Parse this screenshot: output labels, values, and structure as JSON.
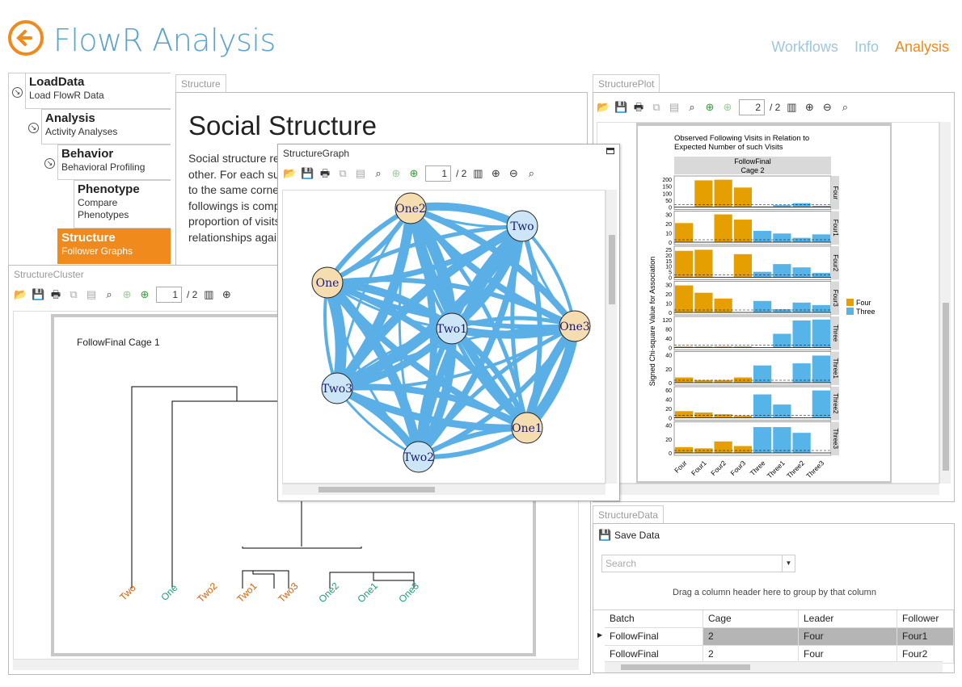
{
  "app": {
    "title": "FlowR Analysis"
  },
  "topnav": [
    {
      "label": "Workflows",
      "active": false
    },
    {
      "label": "Info",
      "active": false
    },
    {
      "label": "Analysis",
      "active": true
    }
  ],
  "colors": {
    "accent": "#f08a1c",
    "title_blue": "#5ba3c9",
    "nav_inactive": "#9ec7dc",
    "edge": "#5ab0e6",
    "node_four": "#f6ddb0",
    "node_three": "#cde6f7",
    "bar_four": "#e69f00",
    "bar_three": "#56b4e9",
    "sel": "#f08a1c"
  },
  "workflow": [
    {
      "title": "LoadData",
      "subtitle": "Load FlowR Data"
    },
    {
      "title": "Analysis",
      "subtitle": "Activity Analyses"
    },
    {
      "title": "Behavior",
      "subtitle": "Behavioral Profiling"
    },
    {
      "title": "Phenotype",
      "subtitle": "Compare Phenotypes"
    },
    {
      "title": "Structure",
      "subtitle": "Follower Graphs"
    }
  ],
  "structure_doc": {
    "tab": "Structure",
    "heading": "Social Structure",
    "lines": [
      "Social structure re",
      "other. For each su",
      "to the same corne",
      "followings is comp",
      "proportion of visits",
      "relationships agai"
    ]
  },
  "toolbar": {
    "page": "1",
    "of": "/ 2"
  },
  "cluster": {
    "tab": "StructureCluster",
    "title": "FollowFinal Cage 1",
    "leaves": [
      {
        "label": "Two",
        "group": "four"
      },
      {
        "label": "One",
        "group": "three"
      },
      {
        "label": "Two2",
        "group": "four"
      },
      {
        "label": "Two1",
        "group": "four"
      },
      {
        "label": "Two3",
        "group": "four"
      },
      {
        "label": "One2",
        "group": "three"
      },
      {
        "label": "One1",
        "group": "three"
      },
      {
        "label": "One3",
        "group": "three"
      }
    ]
  },
  "graph": {
    "title": "StructureGraph",
    "nodes": [
      {
        "label": "One2",
        "type": "four"
      },
      {
        "label": "Two",
        "type": "three"
      },
      {
        "label": "One",
        "type": "four"
      },
      {
        "label": "Two1",
        "type": "three"
      },
      {
        "label": "One3",
        "type": "four"
      },
      {
        "label": "Two3",
        "type": "three"
      },
      {
        "label": "One1",
        "type": "four"
      },
      {
        "label": "Two2",
        "type": "three"
      }
    ]
  },
  "plot": {
    "tab": "StructurePlot",
    "page": "2",
    "of": "/ 2"
  },
  "chart_data": {
    "type": "bar",
    "title": "Observed Following Visits in Relation to Expected Number of such Visits",
    "strip_title": [
      "FollowFinal",
      "Cage 2"
    ],
    "ylabel": "Signed Chi-square Value for Association",
    "categories": [
      "Four",
      "Four1",
      "Four2",
      "Four3",
      "Three",
      "Three1",
      "Three2",
      "Three3"
    ],
    "legend": [
      {
        "name": "Four",
        "color": "#e69f00"
      },
      {
        "name": "Three",
        "color": "#56b4e9"
      }
    ],
    "legend_placement": "right",
    "facets": [
      {
        "name": "Four",
        "ticks": [
          "200",
          "150",
          "100",
          "50",
          "0"
        ],
        "ylim": [
          0,
          220
        ],
        "values": [
          0,
          205,
          210,
          150,
          5,
          15,
          30,
          10
        ]
      },
      {
        "name": "Four1",
        "ticks": [
          "30",
          "20",
          "10",
          "0"
        ],
        "ylim": [
          0,
          33
        ],
        "values": [
          22,
          0,
          32,
          26,
          13,
          10,
          5,
          9
        ]
      },
      {
        "name": "Four2",
        "ticks": [
          "25",
          "20",
          "15",
          "10",
          "5",
          "0"
        ],
        "ylim": [
          0,
          26
        ],
        "values": [
          24,
          25,
          0,
          21,
          5,
          12,
          9,
          4
        ]
      },
      {
        "name": "Four3",
        "ticks": [
          "30",
          "20",
          "10",
          "0"
        ],
        "ylim": [
          0,
          35
        ],
        "values": [
          33,
          24,
          17,
          0,
          14,
          4,
          12,
          9
        ]
      },
      {
        "name": "Three",
        "ticks": [
          "120",
          "80",
          "40",
          "0"
        ],
        "ylim": [
          0,
          125
        ],
        "values": [
          5,
          5,
          5,
          5,
          0,
          60,
          118,
          122
        ]
      },
      {
        "name": "Three1",
        "ticks": [
          "40",
          "20",
          "0"
        ],
        "ylim": [
          0,
          55
        ],
        "values": [
          10,
          5,
          5,
          10,
          33,
          0,
          37,
          52
        ]
      },
      {
        "name": "Three2",
        "ticks": [
          "60",
          "40",
          "20",
          "0"
        ],
        "ylim": [
          0,
          65
        ],
        "values": [
          15,
          12,
          8,
          5,
          53,
          30,
          0,
          62
        ]
      },
      {
        "name": "Three3",
        "ticks": [
          "40",
          "20",
          "0"
        ],
        "ylim": [
          0,
          50
        ],
        "values": [
          10,
          8,
          20,
          12,
          45,
          45,
          35,
          0
        ]
      }
    ]
  },
  "data_panel": {
    "tab": "StructureData",
    "save": "Save Data",
    "search_placeholder": "Search",
    "group_hint": "Drag a column header here to group by that column",
    "columns": [
      "Batch",
      "Cage",
      "Leader",
      "Follower"
    ],
    "rows": [
      [
        "FollowFinal",
        "2",
        "Four",
        "Four1"
      ],
      [
        "FollowFinal",
        "2",
        "Four",
        "Four2"
      ]
    ]
  }
}
